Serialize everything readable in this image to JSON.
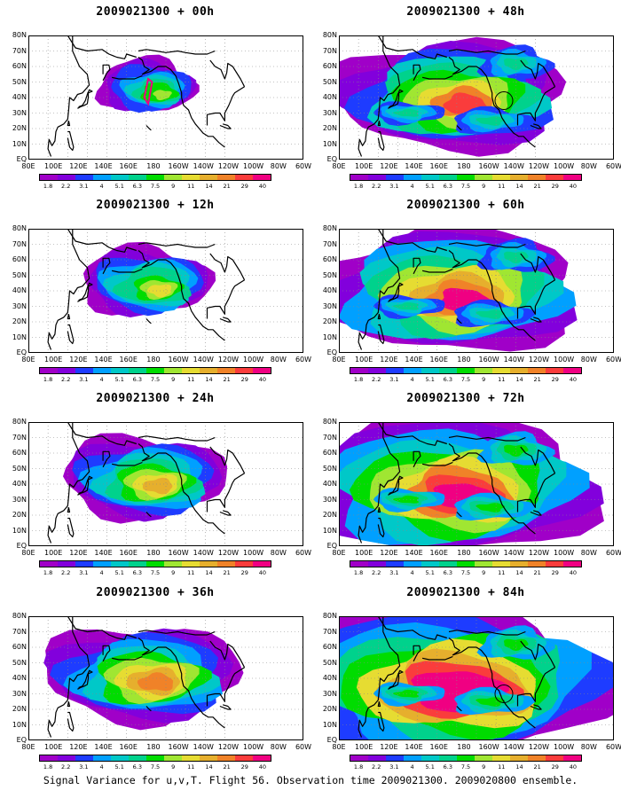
{
  "panels": [
    {
      "title": "2009021300 + 00h",
      "level": 0
    },
    {
      "title": "2009021300 + 12h",
      "level": 1
    },
    {
      "title": "2009021300 + 24h",
      "level": 2
    },
    {
      "title": "2009021300 + 36h",
      "level": 3
    },
    {
      "title": "2009021300 + 48h",
      "level": 4
    },
    {
      "title": "2009021300 + 60h",
      "level": 5
    },
    {
      "title": "2009021300 + 72h",
      "level": 6
    },
    {
      "title": "2009021300 + 84h",
      "level": 7
    }
  ],
  "y_axis_labels": [
    "80N",
    "70N",
    "60N",
    "50N",
    "40N",
    "30N",
    "20N",
    "10N",
    "EQ"
  ],
  "x_axis_labels": [
    "80E",
    "100E",
    "120E",
    "140E",
    "160E",
    "180",
    "160W",
    "140W",
    "120W",
    "100W",
    "80W",
    "60W"
  ],
  "colorbar": {
    "labels": [
      "1.8",
      "2.2",
      "3.1",
      "4",
      "5.1",
      "6.3",
      "7.5",
      "9",
      "11",
      "14",
      "21",
      "29",
      "40"
    ],
    "colors": [
      "#a000c8",
      "#8200dc",
      "#1e3cff",
      "#00a0ff",
      "#00c8c8",
      "#00d28c",
      "#00dc00",
      "#a0e632",
      "#e6dc32",
      "#e6af2d",
      "#f08228",
      "#fa3c3c",
      "#f00082"
    ]
  },
  "caption": "Signal Variance for u,v,T. Flight 56. Observation time 2009021300. 2009020800 ensemble."
}
